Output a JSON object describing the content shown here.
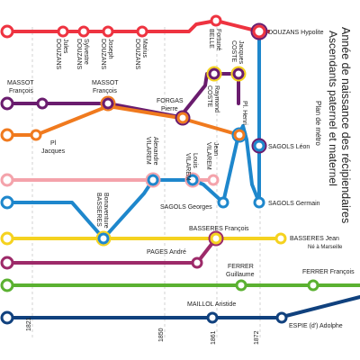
{
  "title": {
    "line1": "Année de naissance des récipiendaires",
    "line2": "Ascendants paternel et maternel",
    "line3": "Plan de métro"
  },
  "axis_ticks": [
    "1821",
    "1850",
    "1861",
    "1872"
  ],
  "lines": [
    {
      "id": "red",
      "color": "#ee3340"
    },
    {
      "id": "purple",
      "color": "#6a1c6e"
    },
    {
      "id": "orange",
      "color": "#f07a1e"
    },
    {
      "id": "pink",
      "color": "#f4a3ab"
    },
    {
      "id": "blue",
      "color": "#1e87cc"
    },
    {
      "id": "yellow",
      "color": "#f5d21f"
    },
    {
      "id": "plum",
      "color": "#9d2a69"
    },
    {
      "id": "green",
      "color": "#5bb131"
    },
    {
      "id": "navy",
      "color": "#10417e"
    }
  ],
  "stations": {
    "douzans_jules": {
      "l1": "DOUZANS",
      "l2": "Jules"
    },
    "douzans_sylvestre": {
      "l1": "DOUZANS",
      "l2": "Sylvestre"
    },
    "douzans_joseph": {
      "l1": "DOUZANS",
      "l2": "Joseph"
    },
    "douzans_marius": {
      "l1": "DOUZANS",
      "l2": "Marius"
    },
    "belle_fortune": {
      "l1": "BELLE",
      "l2": "Fortuné"
    },
    "douzans_hypolite": {
      "l1": "DOUZANS Hypolite"
    },
    "coste_jacques": {
      "l1": "COSTE",
      "l2": "Jacques"
    },
    "massot_francois_1": {
      "l1": "MASSOT",
      "l2": "François"
    },
    "massot_francois_2": {
      "l1": "MASSOT",
      "l2": "François"
    },
    "coste_raymond": {
      "l1": "COSTE",
      "l2": "Raymond"
    },
    "forgas_pierre": {
      "l1": "FORGAS",
      "l2": "Pierre"
    },
    "pl_henri": {
      "l1": "Pl. Henri"
    },
    "pl_jacques": {
      "l1": "Pl",
      "l2": "Jacques"
    },
    "sagols_leon": {
      "l1": "SAGOLS Léon"
    },
    "vilarem_alexandre": {
      "l1": "VILAREM",
      "l2": "Alexandre"
    },
    "vilarem_louis": {
      "l1": "VILAREM",
      "l2": "Louis"
    },
    "vilarem_jean": {
      "l1": "VILAREM",
      "l2": "Jean"
    },
    "sagols_georges": {
      "l1": "SAGOLS Georges"
    },
    "sagols_germain": {
      "l1": "SAGOLS Germain"
    },
    "basseres_bonaventure": {
      "l1": "BASSERES",
      "l2": "Bonaventure"
    },
    "basseres_francois": {
      "l1": "BASSERES François"
    },
    "basseres_jean": {
      "l1": "BASSERES Jean",
      "l2": "Né à Marseille"
    },
    "pages_andre": {
      "l1": "PAGES André"
    },
    "ferrer_guillaume": {
      "l1": "FERRER",
      "l2": "Guillaume"
    },
    "ferrer_francois": {
      "l1": "FERRER François"
    },
    "maillol_aristide": {
      "l1": "MAILLOL Aristide"
    },
    "espie_adolphe": {
      "l1": "ESPIE (d') Adolphe"
    }
  }
}
